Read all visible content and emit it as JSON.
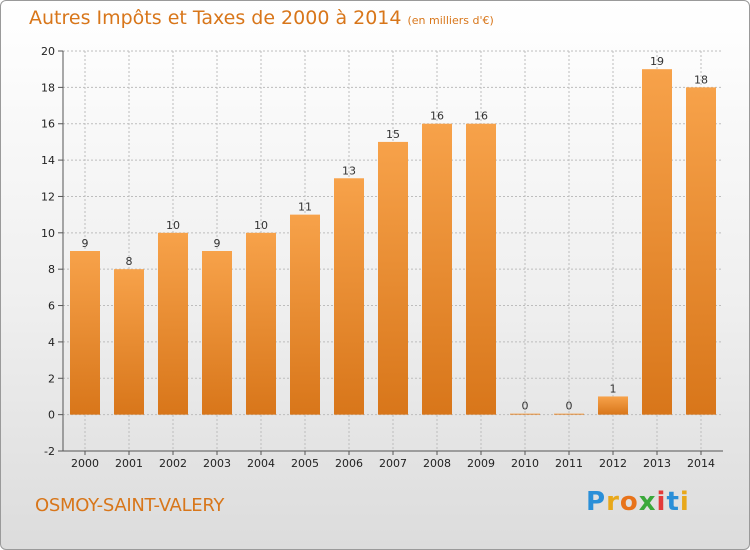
{
  "header": {
    "title": "Autres Impôts et Taxes de 2000 à 2014",
    "unit": "(en milliers d'€)"
  },
  "footer": {
    "commune": "OSMOY-SAINT-VALERY",
    "logo_text": "Proxiti"
  },
  "colors": {
    "bar": "#f0922f",
    "title": "#d8761a",
    "grid": "#bdbdbd"
  },
  "chart_data": {
    "type": "bar",
    "title": "Autres Impôts et Taxes de 2000 à 2014",
    "subtitle": "(en milliers d'€)",
    "categories": [
      "2000",
      "2001",
      "2002",
      "2003",
      "2004",
      "2005",
      "2006",
      "2007",
      "2008",
      "2009",
      "2010",
      "2011",
      "2012",
      "2013",
      "2014"
    ],
    "values": [
      9,
      8,
      10,
      9,
      10,
      11,
      13,
      15,
      16,
      16,
      0,
      0,
      1,
      19,
      18
    ],
    "ylim": [
      -2,
      20
    ],
    "yticks": [
      -2,
      0,
      2,
      4,
      6,
      8,
      10,
      12,
      14,
      16,
      18,
      20
    ],
    "grid": true
  }
}
